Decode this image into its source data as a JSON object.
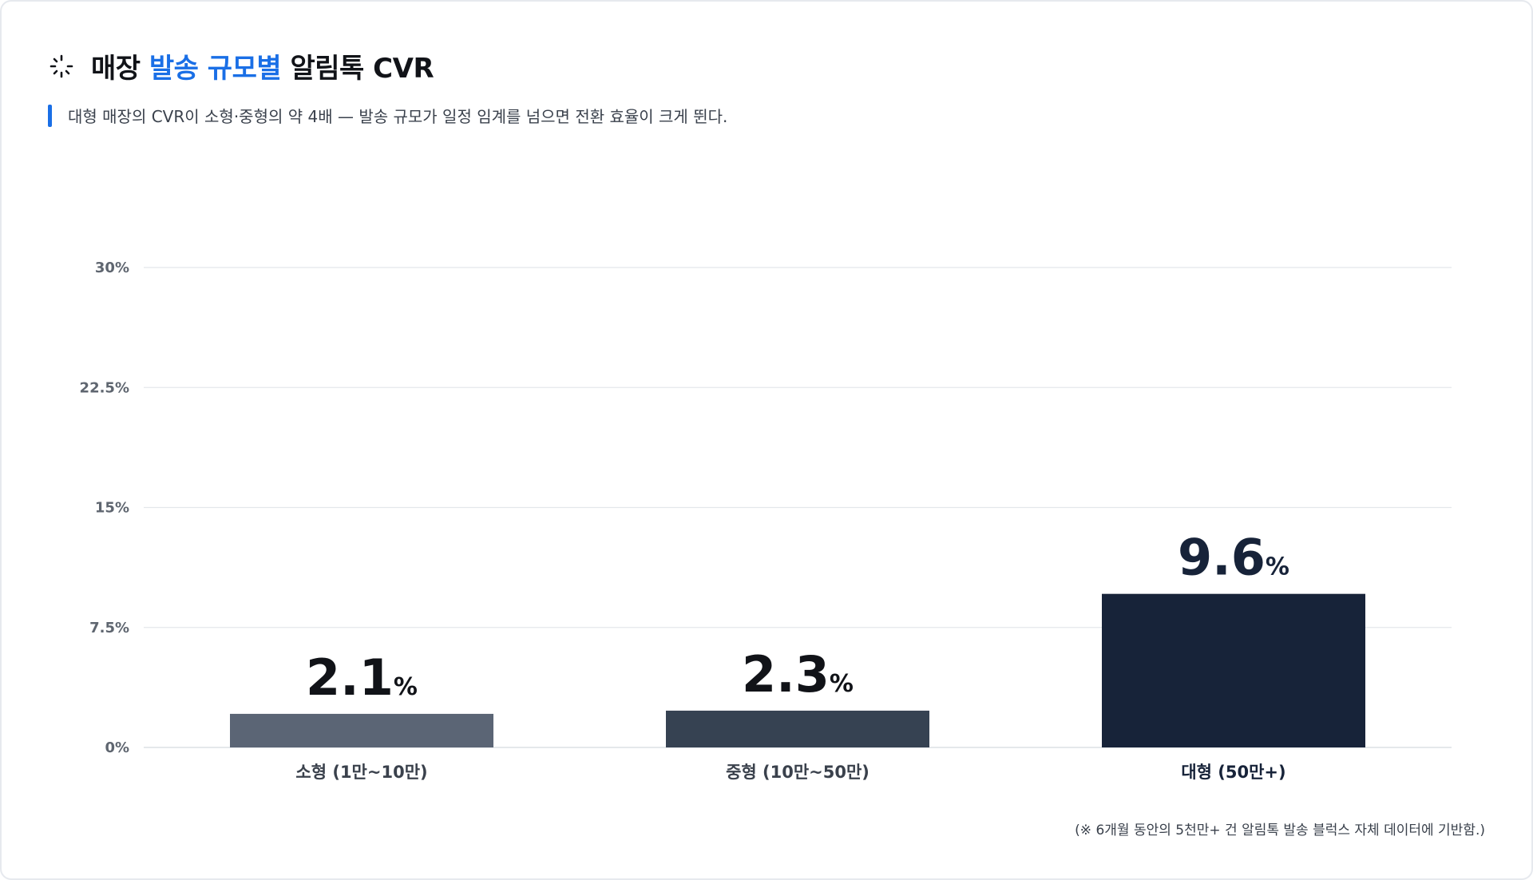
{
  "header": {
    "title_prefix": "매장",
    "title_accent": "발송 규모별",
    "title_suffix": "알림톡 CVR",
    "subtitle": "대형 매장의 CVR이 소형·중형의 약 4배 — 발송 규모가 일정 임계를 넘으면 전환 효율이 크게 뛴다."
  },
  "footnote": "(※ 6개월 동안의 5천만+ 건 알림톡 발송 블럭스 자체 데이터에 기반함.)",
  "colors": {
    "accent": "#1a6fe6",
    "bar_small": "#5b6575",
    "bar_medium": "#364252",
    "bar_large": "#172339",
    "grid": "#e4e7eb"
  },
  "chart_data": {
    "type": "bar",
    "title": "매장 발송 규모별 알림톡 CVR",
    "categories": [
      "소형 (1만~10만)",
      "중형 (10만~50만)",
      "대형 (50만+)"
    ],
    "values": [
      2.1,
      2.3,
      9.6
    ],
    "value_unit": "%",
    "data_labels": [
      "2.1",
      "2.3",
      "9.6"
    ],
    "ylim": [
      0,
      30
    ],
    "yticks": [
      "0%",
      "7.5%",
      "15%",
      "22.5%",
      "30%"
    ],
    "ytick_values": [
      0,
      7.5,
      15,
      22.5,
      30
    ],
    "xlabel": "",
    "ylabel": "",
    "grid": true,
    "legend": "none"
  }
}
